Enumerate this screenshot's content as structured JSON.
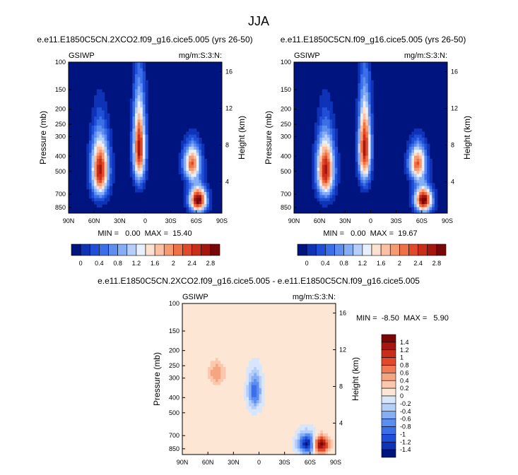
{
  "figure_title": "JJA",
  "colors": {
    "blue_scale": [
      "#00147f",
      "#0e33b6",
      "#1f4fd6",
      "#3b6fe8",
      "#5d8df0",
      "#85aef6",
      "#b5cffa",
      "#e8f0fd"
    ],
    "red_scale": [
      "#fde2d2",
      "#fbbfa1",
      "#f69a72",
      "#ef7245",
      "#e2492a",
      "#c92e1a",
      "#a5160f",
      "#7a0707"
    ],
    "diff_colors": [
      "#00147f",
      "#0e33b6",
      "#1f4fd6",
      "#3b6fe8",
      "#5d8df0",
      "#85aef6",
      "#b5cffa",
      "#d7e6fb",
      "#fde6d4",
      "#fbc8ae",
      "#f6a582",
      "#ef7a54",
      "#e2492a",
      "#c92e1a",
      "#a5160f",
      "#7a0707"
    ]
  },
  "chart_data": [
    {
      "type": "heatmap",
      "title": "e.e11.E1850C5CN.2XCO2.f09_g16.cice5.005 (yrs 26-50)",
      "left_label": "GSIWP",
      "right_label": "mg/m:S:3:N:",
      "xlabel": "",
      "ylabel": "Pressure (mb)",
      "ylabel_right": "Height (km)",
      "x_ticks": [
        "90N",
        "60N",
        "30N",
        "0",
        "30S",
        "60S",
        "90S"
      ],
      "x_values": [
        90,
        60,
        30,
        0,
        -30,
        -60,
        -90
      ],
      "y_ticks": [
        "100",
        "150",
        "200",
        "250",
        "300",
        "400",
        "500",
        "700",
        "850"
      ],
      "y_values": [
        100,
        150,
        200,
        250,
        300,
        400,
        500,
        700,
        850
      ],
      "height_ticks": [
        "16",
        "12",
        "8",
        "4"
      ],
      "height_values": [
        16,
        12,
        8,
        4
      ],
      "xlim": [
        90,
        -90
      ],
      "ylim": [
        100,
        925
      ],
      "stats": "MIN =   0.00  MAX =  15.40",
      "min": 0.0,
      "max": 15.4,
      "colorbar_levels": [
        0,
        0.2,
        0.4,
        0.6,
        0.8,
        1.0,
        1.2,
        1.4,
        1.6,
        1.8,
        2.0,
        2.2,
        2.4,
        2.6,
        2.8
      ],
      "colorbar_tick_labels": [
        "0",
        "0.4",
        "0.8",
        "1.2",
        "1.6",
        "2",
        "2.4",
        "2.8"
      ],
      "features": [
        {
          "name": "northern midlatitude maximum",
          "lat": 53,
          "pressure_range": [
            280,
            700
          ],
          "peak": 2.9
        },
        {
          "name": "tropical column",
          "lat": 7,
          "pressure_range": [
            150,
            560
          ],
          "peak": 2.9
        },
        {
          "name": "southern upper maximum",
          "lat": -55,
          "pressure_range": [
            330,
            560
          ],
          "peak": 2.4
        },
        {
          "name": "southern low-level maximum",
          "lat": -62,
          "pressure_range": [
            620,
            900
          ],
          "peak": 3.2
        }
      ]
    },
    {
      "type": "heatmap",
      "title": "e.e11.E1850C5CN.f09_g16.cice5.005 (yrs 26-50)",
      "left_label": "GSIWP",
      "right_label": "mg/m:S:3:N:",
      "xlabel": "",
      "ylabel": "Pressure (mb)",
      "ylabel_right": "Height (km)",
      "x_ticks": [
        "90N",
        "60N",
        "30N",
        "0",
        "30S",
        "60S",
        "90S"
      ],
      "x_values": [
        90,
        60,
        30,
        0,
        -30,
        -60,
        -90
      ],
      "y_ticks": [
        "100",
        "150",
        "200",
        "250",
        "300",
        "400",
        "500",
        "700",
        "850"
      ],
      "y_values": [
        100,
        150,
        200,
        250,
        300,
        400,
        500,
        700,
        850
      ],
      "height_ticks": [
        "16",
        "12",
        "8",
        "4"
      ],
      "height_values": [
        16,
        12,
        8,
        4
      ],
      "xlim": [
        90,
        -90
      ],
      "ylim": [
        100,
        925
      ],
      "stats": "MIN =   0.00  MAX =  19.67",
      "min": 0.0,
      "max": 19.67,
      "colorbar_levels": [
        0,
        0.2,
        0.4,
        0.6,
        0.8,
        1.0,
        1.2,
        1.4,
        1.6,
        1.8,
        2.0,
        2.2,
        2.4,
        2.6,
        2.8
      ],
      "colorbar_tick_labels": [
        "0",
        "0.4",
        "0.8",
        "1.2",
        "1.6",
        "2",
        "2.4",
        "2.8"
      ],
      "features": [
        {
          "name": "northern midlatitude maximum",
          "lat": 53,
          "pressure_range": [
            280,
            700
          ],
          "peak": 2.9
        },
        {
          "name": "tropical column",
          "lat": 7,
          "pressure_range": [
            150,
            560
          ],
          "peak": 2.9
        },
        {
          "name": "southern upper maximum",
          "lat": -55,
          "pressure_range": [
            330,
            560
          ],
          "peak": 2.4
        },
        {
          "name": "southern low-level maximum",
          "lat": -62,
          "pressure_range": [
            620,
            900
          ],
          "peak": 3.2
        }
      ]
    },
    {
      "type": "heatmap",
      "title": "e.e11.E1850C5CN.2XCO2.f09_g16.cice5.005 - e.e11.E1850C5CN.f09_g16.cice5.005",
      "left_label": "GSIWP",
      "right_label": "mg/m:S:3:N:",
      "xlabel": "",
      "ylabel": "Pressure (mb)",
      "ylabel_right": "Height (km)",
      "x_ticks": [
        "90N",
        "60N",
        "30N",
        "0",
        "30S",
        "60S",
        "90S"
      ],
      "x_values": [
        90,
        60,
        30,
        0,
        -30,
        -60,
        -90
      ],
      "y_ticks": [
        "100",
        "150",
        "200",
        "250",
        "300",
        "400",
        "500",
        "700",
        "850"
      ],
      "y_values": [
        100,
        150,
        200,
        250,
        300,
        400,
        500,
        700,
        850
      ],
      "height_ticks": [
        "16",
        "12",
        "8",
        "4"
      ],
      "height_values": [
        16,
        12,
        8,
        4
      ],
      "xlim": [
        90,
        -90
      ],
      "ylim": [
        100,
        925
      ],
      "stats": "MIN =  -8.50  MAX =   5.90",
      "min": -8.5,
      "max": 5.9,
      "colorbar_levels": [
        -1.4,
        -1.2,
        -1.0,
        -0.8,
        -0.6,
        -0.4,
        -0.2,
        0,
        0.2,
        0.4,
        0.6,
        0.8,
        1.0,
        1.2,
        1.4
      ],
      "colorbar_tick_labels": [
        "1.4",
        "1.2",
        "1",
        "0.8",
        "0.6",
        "0.4",
        "0.2",
        "0",
        "-0.2",
        "-0.4",
        "-0.6",
        "-0.8",
        "-1",
        "-1.2",
        "-1.4"
      ],
      "features": [
        {
          "name": "southern low-level decrease",
          "lat": -57,
          "pressure_range": [
            680,
            900
          ],
          "peak": -1.6
        },
        {
          "name": "southern low-level increase",
          "lat": -72,
          "pressure_range": [
            700,
            900
          ],
          "peak": 1.6
        },
        {
          "name": "tropical decrease",
          "lat": 5,
          "pressure_range": [
            280,
            450
          ],
          "peak": -1.0
        },
        {
          "name": "northern midlatitude increase",
          "lat": 50,
          "pressure_range": [
            230,
            330
          ],
          "peak": 0.6
        }
      ]
    }
  ]
}
